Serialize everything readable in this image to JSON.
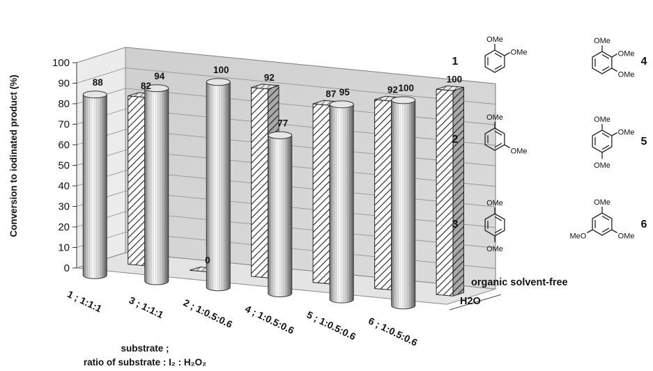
{
  "chart_data": {
    "type": "bar",
    "ylabel": "Conversion to iodinated product (%)",
    "ylim": [
      0,
      100
    ],
    "yticks": [
      0,
      10,
      20,
      30,
      40,
      50,
      60,
      70,
      80,
      90,
      100
    ],
    "xlabel_line1": "substrate ;",
    "xlabel_line2": "ratio of substrate : I₂ : H₂O₂",
    "categories": [
      "1 ; 1:1:1",
      "3 ; 1:1:1",
      "2 ; 1:0.5:0.6",
      "4 ; 1:0.5:0.6",
      "5 ; 1:0.5:0.6",
      "6 ; 1:0.5:0.6"
    ],
    "series": [
      {
        "name": "H2O",
        "values": [
          88,
          94,
          100,
          77,
          95,
          100
        ]
      },
      {
        "name": "organic solvent-free",
        "values": [
          82,
          0,
          92,
          87,
          92,
          100
        ]
      }
    ],
    "colors": {
      "cylinder_light": "#f4f4f4",
      "cylinder_dark": "#6e6e6e",
      "back_wall": "#d4d4d4",
      "hatch": "#444444"
    },
    "grid": true
  },
  "compounds": [
    {
      "number": "1",
      "substituents": [
        "OMe",
        "OMe"
      ]
    },
    {
      "number": "2",
      "substituents": [
        "OMe",
        "OMe"
      ]
    },
    {
      "number": "3",
      "substituents": [
        "OMe",
        "OMe"
      ]
    },
    {
      "number": "4",
      "substituents": [
        "OMe",
        "OMe",
        "OMe"
      ]
    },
    {
      "number": "5",
      "substituents": [
        "OMe",
        "OMe",
        "OMe"
      ]
    },
    {
      "number": "6",
      "substituents": [
        "OMe",
        "MeO",
        "OMe"
      ]
    }
  ]
}
